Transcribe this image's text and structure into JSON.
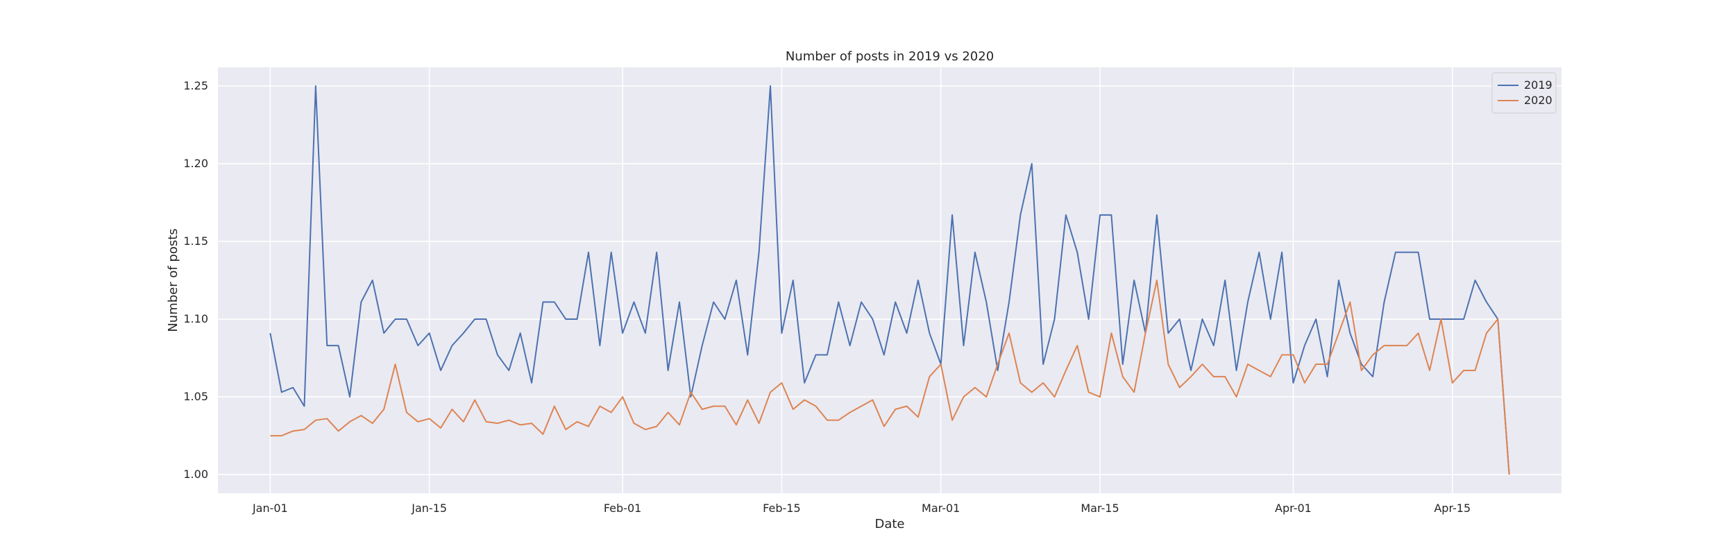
{
  "chart_data": {
    "type": "line",
    "title": "Number of posts in 2019 vs 2020",
    "xlabel": "Date",
    "ylabel": "Number of posts",
    "x_start": "Jan-01",
    "x_ticks": [
      {
        "day": 0,
        "label": "Jan-01"
      },
      {
        "day": 14,
        "label": "Jan-15"
      },
      {
        "day": 31,
        "label": "Feb-01"
      },
      {
        "day": 45,
        "label": "Feb-15"
      },
      {
        "day": 59,
        "label": "Mar-01"
      },
      {
        "day": 73,
        "label": "Mar-15"
      },
      {
        "day": 90,
        "label": "Apr-01"
      },
      {
        "day": 104,
        "label": "Apr-15"
      }
    ],
    "y_ticks": [
      1.0,
      1.05,
      1.1,
      1.15,
      1.2,
      1.25
    ],
    "y_tick_labels": [
      "1.00",
      "1.05",
      "1.10",
      "1.15",
      "1.20",
      "1.25"
    ],
    "ylim": [
      0.988,
      1.262
    ],
    "grid": true,
    "legend_position": "top-right",
    "series": [
      {
        "name": "2019",
        "color": "#4c72b0",
        "values": [
          1.091,
          1.053,
          1.056,
          1.044,
          1.25,
          1.083,
          1.083,
          1.05,
          1.111,
          1.125,
          1.091,
          1.1,
          1.1,
          1.083,
          1.091,
          1.067,
          1.083,
          1.091,
          1.1,
          1.1,
          1.077,
          1.067,
          1.091,
          1.059,
          1.111,
          1.111,
          1.1,
          1.1,
          1.143,
          1.083,
          1.143,
          1.091,
          1.111,
          1.091,
          1.143,
          1.067,
          1.111,
          1.05,
          1.083,
          1.111,
          1.1,
          1.125,
          1.077,
          1.143,
          1.25,
          1.091,
          1.125,
          1.059,
          1.077,
          1.077,
          1.111,
          1.083,
          1.111,
          1.1,
          1.077,
          1.111,
          1.091,
          1.125,
          1.091,
          1.071,
          1.167,
          1.083,
          1.143,
          1.111,
          1.067,
          1.111,
          1.167,
          1.2,
          1.071,
          1.1,
          1.167,
          1.143,
          1.1,
          1.167,
          1.167,
          1.071,
          1.125,
          1.091,
          1.167,
          1.091,
          1.1,
          1.067,
          1.1,
          1.083,
          1.125,
          1.067,
          1.111,
          1.143,
          1.1,
          1.143,
          1.059,
          1.083,
          1.1,
          1.063,
          1.125,
          1.091,
          1.071,
          1.063,
          1.111,
          1.143,
          1.143,
          1.143,
          1.1,
          1.1,
          1.1,
          1.1,
          1.125,
          1.111,
          1.1,
          1.0
        ]
      },
      {
        "name": "2020",
        "color": "#dd8452",
        "values": [
          1.025,
          1.025,
          1.028,
          1.029,
          1.035,
          1.036,
          1.028,
          1.034,
          1.038,
          1.033,
          1.042,
          1.071,
          1.04,
          1.034,
          1.036,
          1.03,
          1.042,
          1.034,
          1.048,
          1.034,
          1.033,
          1.035,
          1.032,
          1.033,
          1.026,
          1.044,
          1.029,
          1.034,
          1.031,
          1.044,
          1.04,
          1.05,
          1.033,
          1.029,
          1.031,
          1.04,
          1.032,
          1.053,
          1.042,
          1.044,
          1.044,
          1.032,
          1.048,
          1.033,
          1.053,
          1.059,
          1.042,
          1.048,
          1.044,
          1.035,
          1.035,
          1.04,
          1.044,
          1.048,
          1.031,
          1.042,
          1.044,
          1.037,
          1.063,
          1.071,
          1.035,
          1.05,
          1.056,
          1.05,
          1.071,
          1.091,
          1.059,
          1.053,
          1.059,
          1.05,
          1.067,
          1.083,
          1.053,
          1.05,
          1.091,
          1.063,
          1.053,
          1.091,
          1.125,
          1.071,
          1.056,
          1.063,
          1.071,
          1.063,
          1.063,
          1.05,
          1.071,
          1.067,
          1.063,
          1.077,
          1.077,
          1.059,
          1.071,
          1.071,
          1.091,
          1.111,
          1.067,
          1.077,
          1.083,
          1.083,
          1.083,
          1.091,
          1.067,
          1.1,
          1.059,
          1.067,
          1.067,
          1.091,
          1.1,
          1.0
        ]
      }
    ]
  }
}
